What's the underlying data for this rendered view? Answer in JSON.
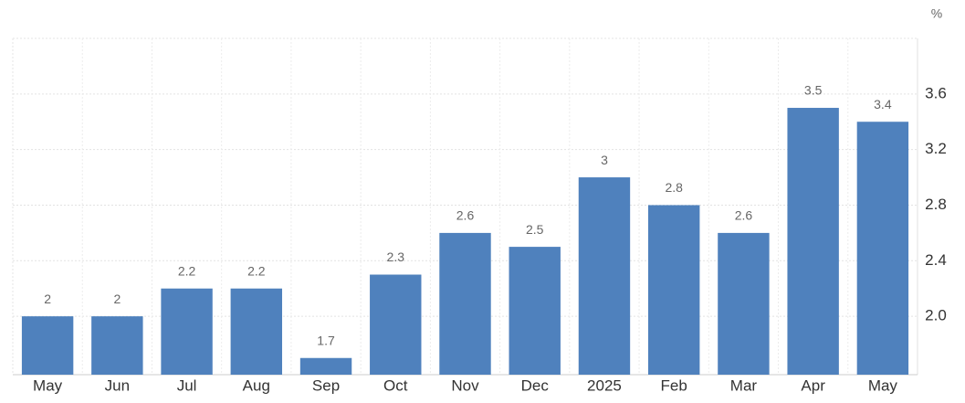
{
  "chart_data": {
    "type": "bar",
    "unit": "%",
    "categories": [
      "May",
      "Jun",
      "Jul",
      "Aug",
      "Sep",
      "Oct",
      "Nov",
      "Dec",
      "2025",
      "Feb",
      "Mar",
      "Apr",
      "May"
    ],
    "values": [
      2,
      2,
      2.2,
      2.2,
      1.7,
      2.3,
      2.6,
      2.5,
      3,
      2.8,
      2.6,
      3.5,
      3.4
    ],
    "color": "#4f81bd",
    "ylim": [
      1.58,
      4.0
    ],
    "yticks": [
      {
        "value": 2,
        "label": "2.0"
      },
      2.4,
      2.8,
      3.2,
      3.6
    ],
    "grid": true
  }
}
